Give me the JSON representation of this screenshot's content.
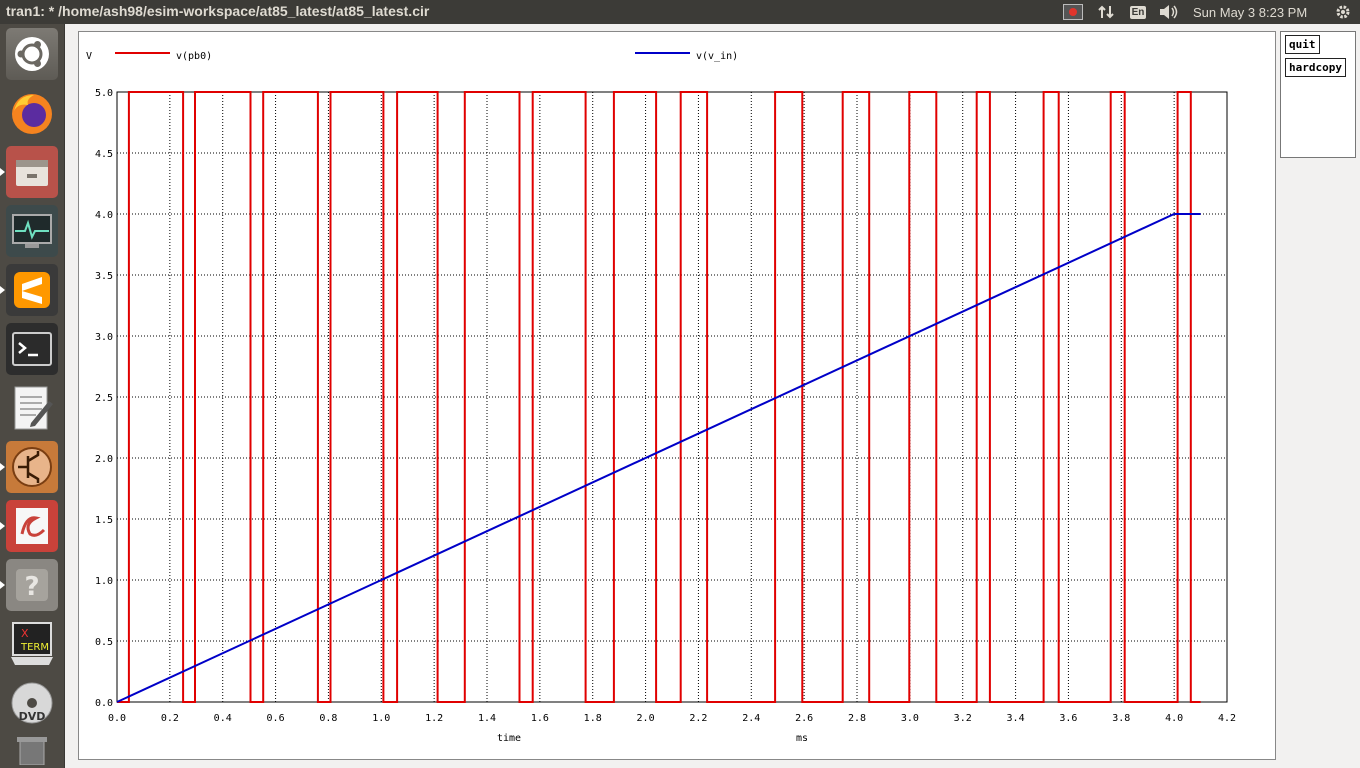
{
  "window_title": "tran1: * /home/ash98/esim-workspace/at85_latest/at85_latest.cir",
  "tray": {
    "keyboard": "En",
    "clock": "Sun May  3  8:23 PM"
  },
  "launcher": {
    "items": [
      {
        "name": "ubuntu-dash-icon",
        "active": false
      },
      {
        "name": "firefox-icon",
        "active": false
      },
      {
        "name": "files-icon",
        "active": true
      },
      {
        "name": "system-monitor-icon",
        "active": false
      },
      {
        "name": "sublime-text-icon",
        "active": true
      },
      {
        "name": "terminal-icon",
        "active": false
      },
      {
        "name": "text-editor-icon",
        "active": false
      },
      {
        "name": "esim-icon",
        "active": true
      },
      {
        "name": "document-viewer-icon",
        "active": true
      },
      {
        "name": "help-icon",
        "active": true
      },
      {
        "name": "xterm-icon",
        "active": false
      },
      {
        "name": "dvd-icon",
        "active": false
      }
    ]
  },
  "panel": {
    "quit_label": "quit",
    "hardcopy_label": "hardcopy"
  },
  "chart_data": {
    "type": "line",
    "ylabel": "V",
    "xlabel": "time",
    "xunit": "ms",
    "xlim": [
      0,
      4.2
    ],
    "ylim": [
      0,
      5.0
    ],
    "x_ticks": [
      "0.0",
      "0.2",
      "0.4",
      "0.6",
      "0.8",
      "1.0",
      "1.2",
      "1.4",
      "1.6",
      "1.8",
      "2.0",
      "2.2",
      "2.4",
      "2.6",
      "2.8",
      "3.0",
      "3.2",
      "3.4",
      "3.6",
      "3.8",
      "4.0",
      "4.2"
    ],
    "y_ticks": [
      "0.0",
      "0.5",
      "1.0",
      "1.5",
      "2.0",
      "2.5",
      "3.0",
      "3.5",
      "4.0",
      "4.5",
      "5.0"
    ],
    "grid": true,
    "legend": "top",
    "series": [
      {
        "name": "v(pb0)",
        "color": "#e00000",
        "high_intervals": [
          [
            0.045,
            0.25
          ],
          [
            0.295,
            0.505
          ],
          [
            0.553,
            0.76
          ],
          [
            0.808,
            1.008
          ],
          [
            1.06,
            1.213
          ],
          [
            1.316,
            1.523
          ],
          [
            1.573,
            1.773
          ],
          [
            1.88,
            2.04
          ],
          [
            2.133,
            2.233
          ],
          [
            2.49,
            2.593
          ],
          [
            2.746,
            2.846
          ],
          [
            2.998,
            3.1
          ],
          [
            3.253,
            3.303
          ],
          [
            3.506,
            3.563
          ],
          [
            3.76,
            3.813
          ],
          [
            4.013,
            4.063
          ]
        ],
        "low": 0,
        "high": 5.0,
        "x_end": 4.1
      },
      {
        "name": "v(v_in)",
        "color": "#0000c8",
        "points": [
          [
            0,
            0
          ],
          [
            4.0,
            4.0
          ],
          [
            4.1,
            4.0
          ]
        ]
      }
    ]
  }
}
